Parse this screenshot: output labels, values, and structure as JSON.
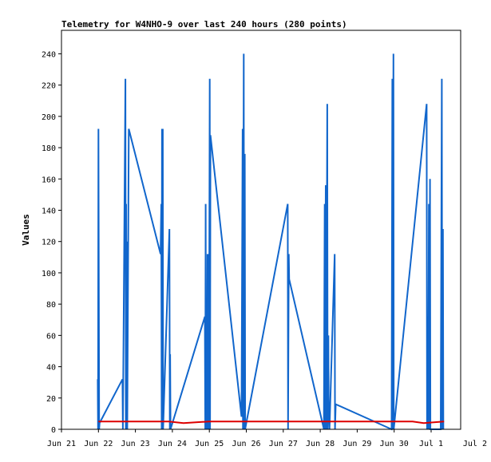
{
  "chart_data": {
    "type": "line",
    "title": "Telemetry for W4NHO-9 over last 240 hours (280 points)",
    "xlabel": "",
    "ylabel": "Values",
    "ylim": [
      0,
      255
    ],
    "yticks": [
      0,
      20,
      40,
      60,
      80,
      100,
      120,
      140,
      160,
      180,
      200,
      220,
      240
    ],
    "xlim": [
      0,
      10
    ],
    "xticks": [
      {
        "x": 0,
        "label": "Jun 21"
      },
      {
        "x": 1,
        "label": "Jun 22"
      },
      {
        "x": 2,
        "label": "Jun 23"
      },
      {
        "x": 3,
        "label": "Jun 24"
      },
      {
        "x": 4,
        "label": "Jun 25"
      },
      {
        "x": 5,
        "label": "Jun 26"
      },
      {
        "x": 6,
        "label": "Jun 27"
      },
      {
        "x": 7,
        "label": "Jun 28"
      },
      {
        "x": 8,
        "label": "Jun 29"
      },
      {
        "x": 9,
        "label": "Jun 30"
      },
      {
        "x": 10,
        "label": "Jul 1"
      }
    ],
    "outer_tick_label": "Jul 2",
    "grid": false,
    "legend": "none",
    "series": [
      {
        "color": "#1166cc",
        "points": [
          [
            0.98,
            32
          ],
          [
            0.99,
            0
          ],
          [
            1.0,
            192
          ],
          [
            1.02,
            0
          ],
          [
            1.03,
            4
          ],
          [
            1.65,
            32
          ],
          [
            1.66,
            0
          ],
          [
            1.73,
            224
          ],
          [
            1.74,
            0
          ],
          [
            1.75,
            144
          ],
          [
            1.76,
            0
          ],
          [
            1.77,
            120
          ],
          [
            1.78,
            0
          ],
          [
            1.82,
            192
          ],
          [
            2.68,
            112
          ],
          [
            2.7,
            144
          ],
          [
            2.71,
            0
          ],
          [
            2.72,
            192
          ],
          [
            2.73,
            0
          ],
          [
            2.74,
            192
          ],
          [
            2.75,
            0
          ],
          [
            2.92,
            128
          ],
          [
            2.93,
            0
          ],
          [
            2.94,
            48
          ],
          [
            2.95,
            0
          ],
          [
            3.88,
            72
          ],
          [
            3.89,
            0
          ],
          [
            3.9,
            144
          ],
          [
            3.91,
            0
          ],
          [
            3.93,
            40
          ],
          [
            3.94,
            0
          ],
          [
            3.95,
            112
          ],
          [
            3.96,
            0
          ],
          [
            3.98,
            112
          ],
          [
            3.99,
            0
          ],
          [
            4.01,
            224
          ],
          [
            4.02,
            0
          ],
          [
            4.03,
            188
          ],
          [
            4.87,
            8
          ],
          [
            4.9,
            192
          ],
          [
            4.91,
            0
          ],
          [
            4.93,
            240
          ],
          [
            4.94,
            0
          ],
          [
            4.96,
            176
          ],
          [
            4.97,
            0
          ],
          [
            5.0,
            4
          ],
          [
            6.12,
            144
          ],
          [
            6.13,
            0
          ],
          [
            6.15,
            112
          ],
          [
            6.16,
            96
          ],
          [
            7.1,
            0
          ],
          [
            7.12,
            144
          ],
          [
            7.13,
            0
          ],
          [
            7.15,
            156
          ],
          [
            7.16,
            0
          ],
          [
            7.19,
            208
          ],
          [
            7.2,
            0
          ],
          [
            7.22,
            60
          ],
          [
            7.23,
            16
          ],
          [
            7.25,
            0
          ],
          [
            7.39,
            112
          ],
          [
            7.4,
            0
          ],
          [
            7.42,
            16
          ],
          [
            8.93,
            0
          ],
          [
            8.95,
            224
          ],
          [
            8.96,
            0
          ],
          [
            8.98,
            240
          ],
          [
            8.99,
            0
          ],
          [
            9.88,
            208
          ],
          [
            9.89,
            0
          ],
          [
            9.91,
            72
          ],
          [
            9.92,
            0
          ],
          [
            9.94,
            144
          ],
          [
            9.95,
            0
          ],
          [
            9.97,
            160
          ],
          [
            9.98,
            0
          ],
          [
            10.26,
            0
          ],
          [
            10.29,
            224
          ],
          [
            10.3,
            0
          ],
          [
            10.32,
            128
          ],
          [
            10.33,
            0
          ]
        ]
      },
      {
        "color": "#dd0000",
        "points": [
          [
            1.0,
            5
          ],
          [
            2.9,
            5
          ],
          [
            3.3,
            4
          ],
          [
            4.0,
            5
          ],
          [
            7.0,
            5
          ],
          [
            7.5,
            5
          ],
          [
            9.5,
            5
          ],
          [
            9.8,
            4
          ],
          [
            10.35,
            5
          ]
        ]
      }
    ]
  }
}
